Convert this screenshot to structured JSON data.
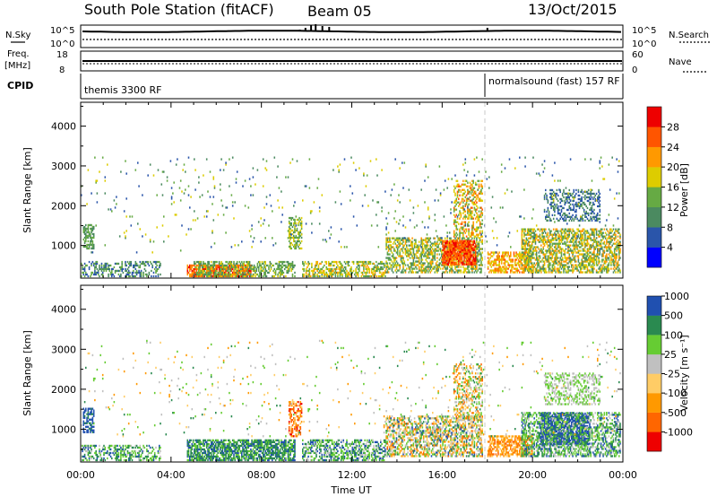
{
  "header": {
    "title": "South Pole Station (fitACF)",
    "beam": "Beam 05",
    "date": "13/Oct/2015"
  },
  "sky_panel": {
    "left_label": "N.Sky",
    "right_label": "N.Search",
    "ticks_left": [
      "10^5",
      "10^0"
    ],
    "ticks_right": [
      "10^5",
      "10^0"
    ]
  },
  "freq_panel": {
    "left_label": "Freq.",
    "left_unit": "[MHz]",
    "right_label": "Nave",
    "ticks_left": [
      "18",
      "8"
    ],
    "ticks_right": [
      "60",
      "0"
    ]
  },
  "cpid_panel": {
    "label": "CPID",
    "segments": [
      {
        "name": "themis 3300 RF",
        "start_hour": 0
      },
      {
        "name": "normalsound (fast) 157 RF",
        "start_hour": 18
      }
    ]
  },
  "x_axis": {
    "label": "Time UT",
    "range_hours": [
      0,
      24
    ],
    "ticks": [
      "00:00",
      "04:00",
      "08:00",
      "12:00",
      "16:00",
      "20:00",
      "00:00"
    ]
  },
  "colors": {
    "power": [
      "#0000ff",
      "#2a55aa",
      "#4b8a60",
      "#66aa44",
      "#ddcc00",
      "#ff9900",
      "#ff5500",
      "#ee0000"
    ],
    "velocity": [
      "#ee0000",
      "#ff6600",
      "#ff9900",
      "#ffcc66",
      "#c0c0c0",
      "#66cc33",
      "#2a8a50",
      "#2050b0"
    ]
  },
  "chart_data": [
    {
      "type": "heatmap",
      "name_printed": "",
      "quantity": "Power",
      "ylabel": "Slant Range [km]",
      "ylim": [
        180,
        4600
      ],
      "yticks": [
        1000,
        2000,
        3000,
        4000
      ],
      "colorbar_label": "Power [dB]",
      "colorbar_ticks": [
        "4",
        "8",
        "12",
        "16",
        "20",
        "24",
        "28"
      ],
      "colorbar_range": [
        0,
        32
      ],
      "scatter_regions": [
        {
          "t": [
            0.1,
            0.6
          ],
          "r": [
            900,
            1500
          ],
          "val": [
            8,
            16
          ],
          "dens": 0.6
        },
        {
          "t": [
            0.0,
            3.5
          ],
          "r": [
            200,
            600
          ],
          "val": [
            4,
            16
          ],
          "dens": 0.4
        },
        {
          "t": [
            4.7,
            7.5
          ],
          "r": [
            200,
            500
          ],
          "val": [
            20,
            30
          ],
          "dens": 0.8
        },
        {
          "t": [
            5.0,
            9.5
          ],
          "r": [
            200,
            600
          ],
          "val": [
            8,
            18
          ],
          "dens": 0.5
        },
        {
          "t": [
            9.2,
            9.8
          ],
          "r": [
            900,
            1700
          ],
          "val": [
            10,
            20
          ],
          "dens": 0.5
        },
        {
          "t": [
            9.8,
            13.5
          ],
          "r": [
            200,
            600
          ],
          "val": [
            10,
            22
          ],
          "dens": 0.5
        },
        {
          "t": [
            13.5,
            17.8
          ],
          "r": [
            300,
            1200
          ],
          "val": [
            8,
            22
          ],
          "dens": 0.5
        },
        {
          "t": [
            16.0,
            17.5
          ],
          "r": [
            500,
            1100
          ],
          "val": [
            22,
            30
          ],
          "dens": 0.85
        },
        {
          "t": [
            16.5,
            17.8
          ],
          "r": [
            1200,
            2600
          ],
          "val": [
            12,
            26
          ],
          "dens": 0.4
        },
        {
          "t": [
            18.0,
            20.0
          ],
          "r": [
            300,
            800
          ],
          "val": [
            16,
            26
          ],
          "dens": 0.6
        },
        {
          "t": [
            19.5,
            23.9
          ],
          "r": [
            300,
            1400
          ],
          "val": [
            8,
            24
          ],
          "dens": 0.55
        },
        {
          "t": [
            20.5,
            23.0
          ],
          "r": [
            1600,
            2400
          ],
          "val": [
            4,
            12
          ],
          "dens": 0.35
        },
        {
          "t": [
            0.0,
            23.9
          ],
          "r": [
            800,
            3200
          ],
          "val": [
            4,
            20
          ],
          "dens": 0.02
        }
      ]
    },
    {
      "type": "heatmap",
      "name_printed": "",
      "quantity": "Velocity",
      "ylabel": "Slant Range [km]",
      "ylim": [
        180,
        4600
      ],
      "yticks": [
        1000,
        2000,
        3000,
        4000
      ],
      "colorbar_label": "Velocity [m s⁻¹]",
      "colorbar_ticks": [
        "-1000",
        "-500",
        "-100",
        "-25",
        "25",
        "100",
        "500",
        "1000"
      ],
      "scatter_regions": [
        {
          "t": [
            0.1,
            0.6
          ],
          "r": [
            900,
            1500
          ],
          "val": [
            6,
            8
          ],
          "dens": 0.6
        },
        {
          "t": [
            0.0,
            3.5
          ],
          "r": [
            200,
            600
          ],
          "val": [
            4,
            7
          ],
          "dens": 0.4
        },
        {
          "t": [
            4.7,
            9.5
          ],
          "r": [
            200,
            700
          ],
          "val": [
            5,
            7
          ],
          "dens": 0.7
        },
        {
          "t": [
            9.2,
            9.8
          ],
          "r": [
            800,
            1700
          ],
          "val": [
            0,
            3
          ],
          "dens": 0.5
        },
        {
          "t": [
            9.8,
            13.5
          ],
          "r": [
            200,
            700
          ],
          "val": [
            4,
            7
          ],
          "dens": 0.5
        },
        {
          "t": [
            13.5,
            17.8
          ],
          "r": [
            300,
            1300
          ],
          "val": [
            1,
            7
          ],
          "dens": 0.5
        },
        {
          "t": [
            16.5,
            17.8
          ],
          "r": [
            1200,
            2600
          ],
          "val": [
            1,
            6
          ],
          "dens": 0.4
        },
        {
          "t": [
            18.0,
            20.0
          ],
          "r": [
            300,
            800
          ],
          "val": [
            1,
            3
          ],
          "dens": 0.6
        },
        {
          "t": [
            20.3,
            22.5
          ],
          "r": [
            600,
            1400
          ],
          "val": [
            7,
            8
          ],
          "dens": 0.7
        },
        {
          "t": [
            19.5,
            23.9
          ],
          "r": [
            300,
            1400
          ],
          "val": [
            4,
            7
          ],
          "dens": 0.5
        },
        {
          "t": [
            20.5,
            23.0
          ],
          "r": [
            1600,
            2400
          ],
          "val": [
            4,
            5
          ],
          "dens": 0.35
        },
        {
          "t": [
            0.0,
            23.9
          ],
          "r": [
            800,
            3200
          ],
          "val": [
            2,
            6
          ],
          "dens": 0.02
        }
      ]
    }
  ]
}
